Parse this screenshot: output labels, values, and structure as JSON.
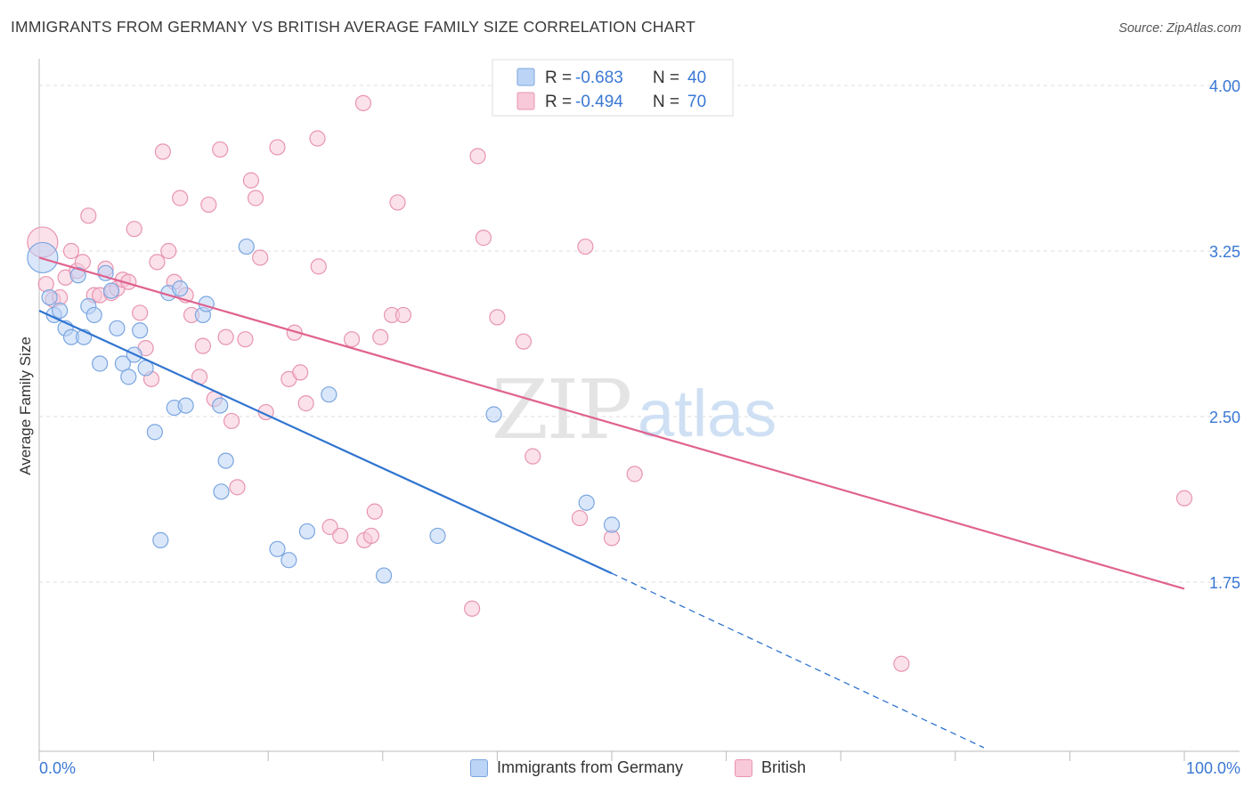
{
  "title": "IMMIGRANTS FROM GERMANY VS BRITISH AVERAGE FAMILY SIZE CORRELATION CHART",
  "source": "Source: ZipAtlas.com",
  "watermark": {
    "zip": "ZIP",
    "atlas": "atlas"
  },
  "legend_top": [
    {
      "r_label": "R =",
      "r_value": "-0.683",
      "n_label": "N =",
      "n_value": "40"
    },
    {
      "r_label": "R =",
      "r_value": "-0.494",
      "n_label": "N =",
      "n_value": "70"
    }
  ],
  "legend_bottom": [
    {
      "label": "Immigrants from Germany"
    },
    {
      "label": "British"
    }
  ],
  "colors": {
    "blue_fill": "#bcd4f5",
    "blue_stroke": "#7aa6e0",
    "blue_line": "#2f74d0",
    "pink_fill": "#f8c9d8",
    "pink_stroke": "#e895b0",
    "pink_line": "#e0628f",
    "tick_label": "#3a78d4",
    "grid": "#dcdcdc"
  },
  "chart_data": {
    "type": "scatter",
    "title": "IMMIGRANTS FROM GERMANY VS BRITISH AVERAGE FAMILY SIZE CORRELATION CHART",
    "xlabel": "",
    "ylabel": "Average Family Size",
    "xlim": [
      0,
      100
    ],
    "ylim": [
      1.0,
      4.1
    ],
    "x_tick_labels": [
      "0.0%",
      "100.0%"
    ],
    "y_ticks": [
      1.75,
      2.5,
      3.25,
      4.0
    ],
    "y_tick_labels": [
      "1.75",
      "2.50",
      "3.25",
      "4.00"
    ],
    "grid": true,
    "legend_placement": "top-center",
    "series": [
      {
        "name": "Immigrants from Germany",
        "color": "blue",
        "r": -0.683,
        "n": 40,
        "trend": {
          "x0": 0,
          "y0": 2.98,
          "x1": 50,
          "y1": 1.79,
          "dashed_to_x": 82.5,
          "dashed_to_y": 1.0
        },
        "points": [
          [
            0.3,
            3.22
          ],
          [
            0.9,
            3.04
          ],
          [
            1.3,
            2.96
          ],
          [
            1.8,
            2.98
          ],
          [
            2.3,
            2.9
          ],
          [
            2.8,
            2.86
          ],
          [
            3.4,
            3.14
          ],
          [
            3.9,
            2.86
          ],
          [
            4.3,
            3.0
          ],
          [
            4.8,
            2.96
          ],
          [
            5.3,
            2.74
          ],
          [
            5.8,
            3.15
          ],
          [
            6.3,
            3.07
          ],
          [
            6.8,
            2.9
          ],
          [
            7.3,
            2.74
          ],
          [
            7.8,
            2.68
          ],
          [
            8.3,
            2.78
          ],
          [
            8.8,
            2.89
          ],
          [
            9.3,
            2.72
          ],
          [
            10.1,
            2.43
          ],
          [
            10.6,
            1.94
          ],
          [
            11.3,
            3.06
          ],
          [
            11.8,
            2.54
          ],
          [
            12.3,
            3.08
          ],
          [
            12.8,
            2.55
          ],
          [
            14.3,
            2.96
          ],
          [
            14.6,
            3.01
          ],
          [
            15.8,
            2.55
          ],
          [
            15.9,
            2.16
          ],
          [
            16.3,
            2.3
          ],
          [
            18.1,
            3.27
          ],
          [
            20.8,
            1.9
          ],
          [
            21.8,
            1.85
          ],
          [
            23.4,
            1.98
          ],
          [
            25.3,
            2.6
          ],
          [
            30.1,
            1.78
          ],
          [
            34.8,
            1.96
          ],
          [
            39.7,
            2.51
          ],
          [
            47.8,
            2.11
          ],
          [
            50.0,
            2.01
          ]
        ]
      },
      {
        "name": "British",
        "color": "pink",
        "r": -0.494,
        "n": 70,
        "trend": {
          "x0": 0,
          "y0": 3.22,
          "x1": 100,
          "y1": 1.72
        },
        "points": [
          [
            0.3,
            3.29
          ],
          [
            0.6,
            3.1
          ],
          [
            1.2,
            3.03
          ],
          [
            1.8,
            3.04
          ],
          [
            2.3,
            3.13
          ],
          [
            2.8,
            3.25
          ],
          [
            3.3,
            3.16
          ],
          [
            3.8,
            3.2
          ],
          [
            4.3,
            3.41
          ],
          [
            4.8,
            3.05
          ],
          [
            5.3,
            3.05
          ],
          [
            5.8,
            3.17
          ],
          [
            6.3,
            3.06
          ],
          [
            6.8,
            3.08
          ],
          [
            7.3,
            3.12
          ],
          [
            7.8,
            3.11
          ],
          [
            8.3,
            3.35
          ],
          [
            8.8,
            2.97
          ],
          [
            9.3,
            2.81
          ],
          [
            9.8,
            2.67
          ],
          [
            10.3,
            3.2
          ],
          [
            10.8,
            3.7
          ],
          [
            11.3,
            3.25
          ],
          [
            11.8,
            3.11
          ],
          [
            12.3,
            3.49
          ],
          [
            12.8,
            3.05
          ],
          [
            13.3,
            2.96
          ],
          [
            14.0,
            2.68
          ],
          [
            14.3,
            2.82
          ],
          [
            14.8,
            3.46
          ],
          [
            15.3,
            2.58
          ],
          [
            15.8,
            3.71
          ],
          [
            16.3,
            2.86
          ],
          [
            16.8,
            2.48
          ],
          [
            17.3,
            2.18
          ],
          [
            18.0,
            2.85
          ],
          [
            18.5,
            3.57
          ],
          [
            18.9,
            3.49
          ],
          [
            19.3,
            3.22
          ],
          [
            19.8,
            2.52
          ],
          [
            20.8,
            3.72
          ],
          [
            21.8,
            2.67
          ],
          [
            22.3,
            2.88
          ],
          [
            22.8,
            2.7
          ],
          [
            23.3,
            2.56
          ],
          [
            24.3,
            3.76
          ],
          [
            24.4,
            3.18
          ],
          [
            25.4,
            2.0
          ],
          [
            26.3,
            1.96
          ],
          [
            27.3,
            2.85
          ],
          [
            28.3,
            3.92
          ],
          [
            28.4,
            1.94
          ],
          [
            29.0,
            1.96
          ],
          [
            29.3,
            2.07
          ],
          [
            29.8,
            2.86
          ],
          [
            30.8,
            2.96
          ],
          [
            31.3,
            3.47
          ],
          [
            31.8,
            2.96
          ],
          [
            37.8,
            1.63
          ],
          [
            38.3,
            3.68
          ],
          [
            38.8,
            3.31
          ],
          [
            40.0,
            2.95
          ],
          [
            42.3,
            2.84
          ],
          [
            43.1,
            2.32
          ],
          [
            47.2,
            2.04
          ],
          [
            47.7,
            3.27
          ],
          [
            50.0,
            1.95
          ],
          [
            52.0,
            2.24
          ],
          [
            75.3,
            1.38
          ],
          [
            100.0,
            2.13
          ]
        ]
      }
    ]
  }
}
